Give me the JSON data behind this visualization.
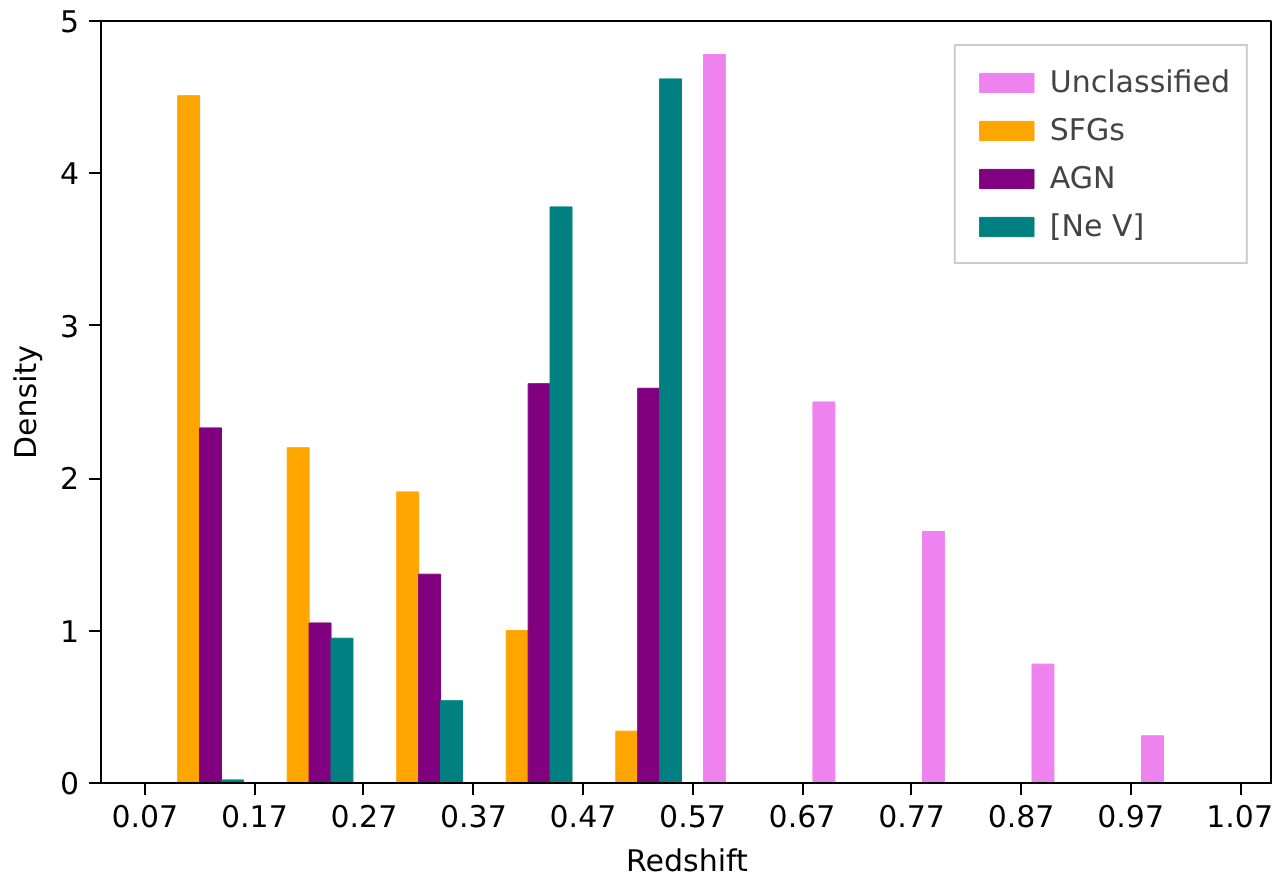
{
  "chart_data": {
    "type": "bar",
    "xlabel": "Redshift",
    "ylabel": "Density",
    "xlim": [
      0.03,
      1.1
    ],
    "ylim": [
      0,
      5
    ],
    "xticks": [
      {
        "value": 0.07,
        "label": "0.07"
      },
      {
        "value": 0.17,
        "label": "0.17"
      },
      {
        "value": 0.27,
        "label": "0.27"
      },
      {
        "value": 0.37,
        "label": "0.37"
      },
      {
        "value": 0.47,
        "label": "0.47"
      },
      {
        "value": 0.57,
        "label": "0.57"
      },
      {
        "value": 0.67,
        "label": "0.67"
      },
      {
        "value": 0.77,
        "label": "0.77"
      },
      {
        "value": 0.87,
        "label": "0.87"
      },
      {
        "value": 0.97,
        "label": "0.97"
      },
      {
        "value": 1.07,
        "label": "1.07"
      }
    ],
    "yticks": [
      0,
      1,
      2,
      3,
      4,
      5
    ],
    "grid": false,
    "legend": "top right",
    "series": [
      {
        "name": "Unclassified",
        "color": "#ee82ee",
        "x": [
          0.59,
          0.69,
          0.79,
          0.89,
          0.99
        ],
        "values": [
          4.78,
          2.5,
          1.65,
          0.78,
          0.31
        ]
      },
      {
        "name": "SFGs",
        "color": "#ffa500",
        "x": [
          0.11,
          0.21,
          0.31,
          0.41,
          0.51
        ],
        "values": [
          4.51,
          2.2,
          1.91,
          1.0,
          0.34
        ]
      },
      {
        "name": "AGN",
        "color": "#800080",
        "x": [
          0.13,
          0.23,
          0.33,
          0.43,
          0.53
        ],
        "values": [
          2.33,
          1.05,
          1.37,
          2.62,
          2.59
        ]
      },
      {
        "name": "[Ne V]",
        "color": "#008080",
        "x": [
          0.15,
          0.25,
          0.35,
          0.45,
          0.55
        ],
        "values": [
          0.02,
          0.95,
          0.54,
          3.78,
          4.62
        ]
      }
    ]
  }
}
